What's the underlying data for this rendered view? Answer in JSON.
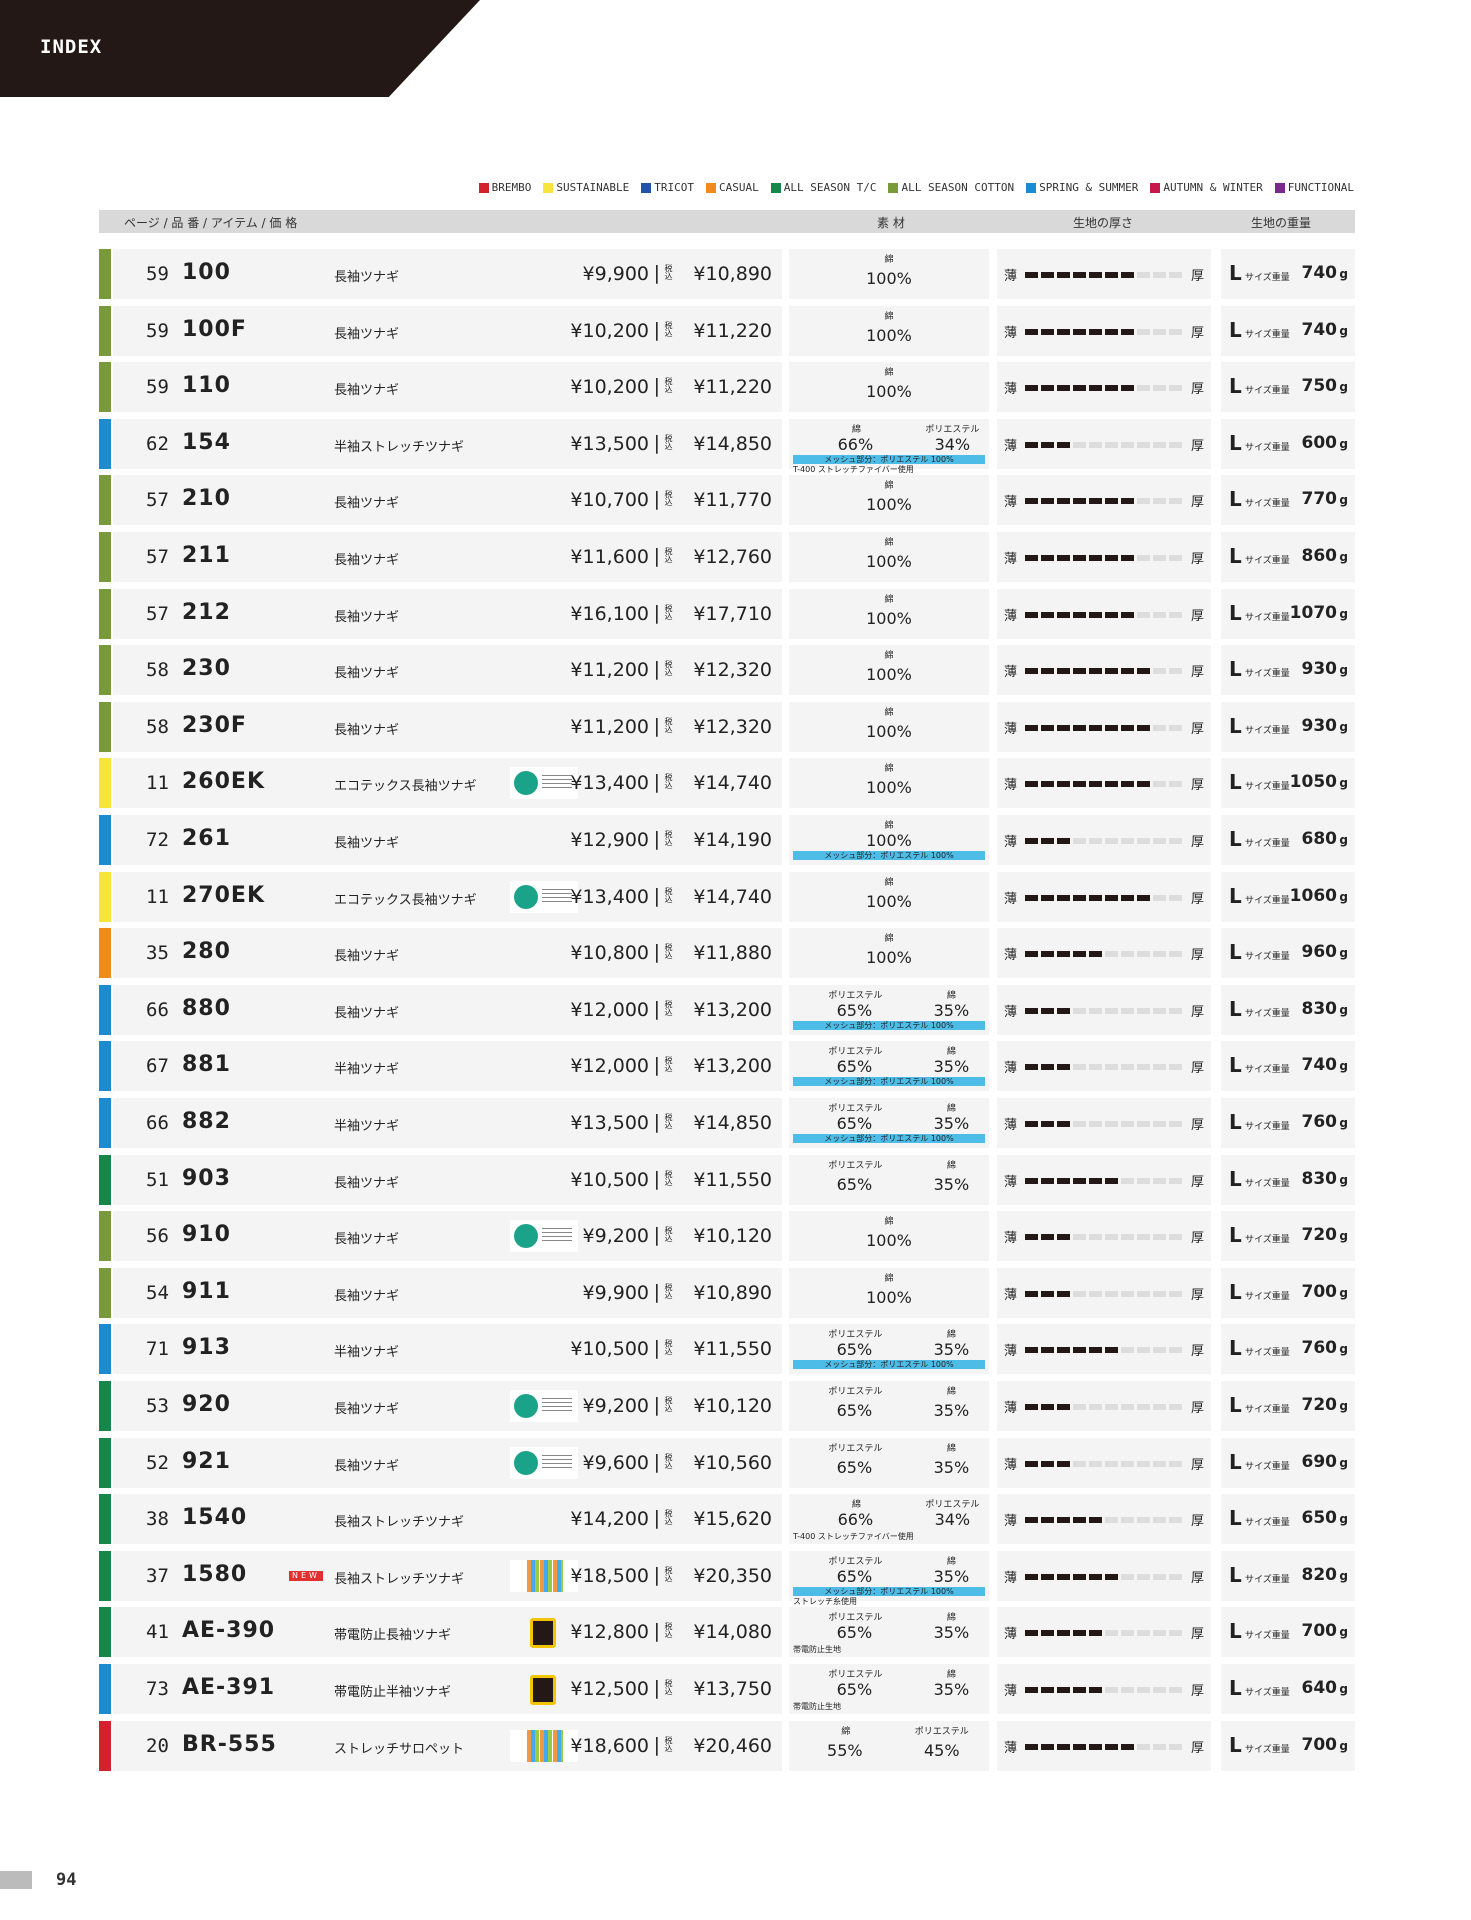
{
  "header": {
    "title": "INDEX"
  },
  "legend": [
    {
      "name": "BREMBO",
      "color": "#d2222d"
    },
    {
      "name": "SUSTAINABLE",
      "color": "#f7e53b"
    },
    {
      "name": "TRICOT",
      "color": "#2353a6"
    },
    {
      "name": "CASUAL",
      "color": "#f08a1d"
    },
    {
      "name": "ALL SEASON T/C",
      "color": "#16874a"
    },
    {
      "name": "ALL SEASON COTTON",
      "color": "#7a9a3a"
    },
    {
      "name": "SPRING & SUMMER",
      "color": "#1b8bd2"
    },
    {
      "name": "AUTUMN & WINTER",
      "color": "#c8174a"
    },
    {
      "name": "FUNCTIONAL",
      "color": "#7a2a8a"
    }
  ],
  "columns": [
    "ページ / 品 番 / アイテム / 価 格",
    "素 材",
    "生地の厚さ",
    "生地の重量"
  ],
  "labels": {
    "tax": "税込",
    "thin": "薄",
    "thick": "厚",
    "size": "L",
    "size_note": "サイズ重量",
    "unit": "g",
    "new": "NEW"
  },
  "material_colors": {
    "綿": "#f08a1d",
    "ポリエステル": "#4dbde8"
  },
  "rows": [
    {
      "category": 5,
      "page": "59",
      "code": "100",
      "item": "長袖ツナギ",
      "price": "¥9,900",
      "price_tax": "¥10,890",
      "materials": [
        {
          "name": "綿",
          "value": 100,
          "label": "100%"
        }
      ],
      "thickness": 7,
      "weight": 740
    },
    {
      "category": 5,
      "page": "59",
      "code": "100F",
      "item": "長袖ツナギ",
      "price": "¥10,200",
      "price_tax": "¥11,220",
      "materials": [
        {
          "name": "綿",
          "value": 100,
          "label": "100%"
        }
      ],
      "thickness": 7,
      "weight": 740
    },
    {
      "category": 5,
      "page": "59",
      "code": "110",
      "item": "長袖ツナギ",
      "price": "¥10,200",
      "price_tax": "¥11,220",
      "materials": [
        {
          "name": "綿",
          "value": 100,
          "label": "100%"
        }
      ],
      "thickness": 7,
      "weight": 750
    },
    {
      "category": 6,
      "page": "62",
      "code": "154",
      "item": "半袖ストレッチツナギ",
      "price": "¥13,500",
      "price_tax": "¥14,850",
      "materials": [
        {
          "name": "綿",
          "value": 66,
          "label": "66%"
        },
        {
          "name": "ポリエステル",
          "value": 34,
          "label": "34%"
        }
      ],
      "notes": [
        "メッシュ部分：ポリエステル 100%",
        "T-400 ストレッチファイバー使用"
      ],
      "thickness": 3,
      "weight": 600
    },
    {
      "category": 5,
      "page": "57",
      "code": "210",
      "item": "長袖ツナギ",
      "price": "¥10,700",
      "price_tax": "¥11,770",
      "materials": [
        {
          "name": "綿",
          "value": 100,
          "label": "100%"
        }
      ],
      "thickness": 7,
      "weight": 770
    },
    {
      "category": 5,
      "page": "57",
      "code": "211",
      "item": "長袖ツナギ",
      "price": "¥11,600",
      "price_tax": "¥12,760",
      "materials": [
        {
          "name": "綿",
          "value": 100,
          "label": "100%"
        }
      ],
      "thickness": 7,
      "weight": 860
    },
    {
      "category": 5,
      "page": "57",
      "code": "212",
      "item": "長袖ツナギ",
      "price": "¥16,100",
      "price_tax": "¥17,710",
      "materials": [
        {
          "name": "綿",
          "value": 100,
          "label": "100%"
        }
      ],
      "thickness": 7,
      "weight": 1070
    },
    {
      "category": 5,
      "page": "58",
      "code": "230",
      "item": "長袖ツナギ",
      "price": "¥11,200",
      "price_tax": "¥12,320",
      "materials": [
        {
          "name": "綿",
          "value": 100,
          "label": "100%"
        }
      ],
      "thickness": 8,
      "weight": 930
    },
    {
      "category": 5,
      "page": "58",
      "code": "230F",
      "item": "長袖ツナギ",
      "price": "¥11,200",
      "price_tax": "¥12,320",
      "materials": [
        {
          "name": "綿",
          "value": 100,
          "label": "100%"
        }
      ],
      "thickness": 8,
      "weight": 930
    },
    {
      "category": 1,
      "page": "11",
      "code": "260EK",
      "item": "エコテックス長袖ツナギ",
      "badge": "oeko",
      "price": "¥13,400",
      "price_tax": "¥14,740",
      "materials": [
        {
          "name": "綿",
          "value": 100,
          "label": "100%"
        }
      ],
      "thickness": 8,
      "weight": 1050
    },
    {
      "category": 6,
      "page": "72",
      "code": "261",
      "item": "長袖ツナギ",
      "price": "¥12,900",
      "price_tax": "¥14,190",
      "materials": [
        {
          "name": "綿",
          "value": 100,
          "label": "100%"
        }
      ],
      "notes": [
        "メッシュ部分：ポリエステル 100%"
      ],
      "thickness": 3,
      "weight": 680
    },
    {
      "category": 1,
      "page": "11",
      "code": "270EK",
      "item": "エコテックス長袖ツナギ",
      "badge": "oeko",
      "price": "¥13,400",
      "price_tax": "¥14,740",
      "materials": [
        {
          "name": "綿",
          "value": 100,
          "label": "100%"
        }
      ],
      "thickness": 8,
      "weight": 1060
    },
    {
      "category": 3,
      "page": "35",
      "code": "280",
      "item": "長袖ツナギ",
      "price": "¥10,800",
      "price_tax": "¥11,880",
      "materials": [
        {
          "name": "綿",
          "value": 100,
          "label": "100%"
        }
      ],
      "thickness": 5,
      "weight": 960
    },
    {
      "category": 6,
      "page": "66",
      "code": "880",
      "item": "長袖ツナギ",
      "price": "¥12,000",
      "price_tax": "¥13,200",
      "materials": [
        {
          "name": "ポリエステル",
          "value": 65,
          "label": "65%"
        },
        {
          "name": "綿",
          "value": 35,
          "label": "35%"
        }
      ],
      "notes": [
        "メッシュ部分：ポリエステル 100%"
      ],
      "thickness": 3,
      "weight": 830
    },
    {
      "category": 6,
      "page": "67",
      "code": "881",
      "item": "半袖ツナギ",
      "price": "¥12,000",
      "price_tax": "¥13,200",
      "materials": [
        {
          "name": "ポリエステル",
          "value": 65,
          "label": "65%"
        },
        {
          "name": "綿",
          "value": 35,
          "label": "35%"
        }
      ],
      "notes": [
        "メッシュ部分：ポリエステル 100%"
      ],
      "thickness": 3,
      "weight": 740
    },
    {
      "category": 6,
      "page": "66",
      "code": "882",
      "item": "半袖ツナギ",
      "price": "¥13,500",
      "price_tax": "¥14,850",
      "materials": [
        {
          "name": "ポリエステル",
          "value": 65,
          "label": "65%"
        },
        {
          "name": "綿",
          "value": 35,
          "label": "35%"
        }
      ],
      "notes": [
        "メッシュ部分：ポリエステル 100%"
      ],
      "thickness": 3,
      "weight": 760
    },
    {
      "category": 4,
      "page": "51",
      "code": "903",
      "item": "長袖ツナギ",
      "price": "¥10,500",
      "price_tax": "¥11,550",
      "materials": [
        {
          "name": "ポリエステル",
          "value": 65,
          "label": "65%"
        },
        {
          "name": "綿",
          "value": 35,
          "label": "35%"
        }
      ],
      "thickness": 6,
      "weight": 830
    },
    {
      "category": 5,
      "page": "56",
      "code": "910",
      "item": "長袖ツナギ",
      "badge": "oeko",
      "price": "¥9,200",
      "price_tax": "¥10,120",
      "materials": [
        {
          "name": "綿",
          "value": 100,
          "label": "100%"
        }
      ],
      "thickness": 3,
      "weight": 720
    },
    {
      "category": 5,
      "page": "54",
      "code": "911",
      "item": "長袖ツナギ",
      "price": "¥9,900",
      "price_tax": "¥10,890",
      "materials": [
        {
          "name": "綿",
          "value": 100,
          "label": "100%"
        }
      ],
      "thickness": 3,
      "weight": 700
    },
    {
      "category": 6,
      "page": "71",
      "code": "913",
      "item": "半袖ツナギ",
      "price": "¥10,500",
      "price_tax": "¥11,550",
      "materials": [
        {
          "name": "ポリエステル",
          "value": 65,
          "label": "65%"
        },
        {
          "name": "綿",
          "value": 35,
          "label": "35%"
        }
      ],
      "notes": [
        "メッシュ部分：ポリエステル 100%"
      ],
      "thickness": 6,
      "weight": 760
    },
    {
      "category": 4,
      "page": "53",
      "code": "920",
      "item": "長袖ツナギ",
      "badge": "oeko",
      "price": "¥9,200",
      "price_tax": "¥10,120",
      "materials": [
        {
          "name": "ポリエステル",
          "value": 65,
          "label": "65%"
        },
        {
          "name": "綿",
          "value": 35,
          "label": "35%"
        }
      ],
      "thickness": 3,
      "weight": 720
    },
    {
      "category": 4,
      "page": "52",
      "code": "921",
      "item": "長袖ツナギ",
      "badge": "oeko",
      "price": "¥9,600",
      "price_tax": "¥10,560",
      "materials": [
        {
          "name": "ポリエステル",
          "value": 65,
          "label": "65%"
        },
        {
          "name": "綿",
          "value": 35,
          "label": "35%"
        }
      ],
      "thickness": 3,
      "weight": 690
    },
    {
      "category": 4,
      "page": "38",
      "code": "1540",
      "item": "長袖ストレッチツナギ",
      "price": "¥14,200",
      "price_tax": "¥15,620",
      "materials": [
        {
          "name": "綿",
          "value": 66,
          "label": "66%"
        },
        {
          "name": "ポリエステル",
          "value": 34,
          "label": "34%"
        }
      ],
      "notes": [
        "T-400 ストレッチファイバー使用"
      ],
      "thickness": 5,
      "weight": 650
    },
    {
      "category": 4,
      "page": "37",
      "code": "1580",
      "item": "長袖ストレッチツナギ",
      "new": true,
      "badge": "sustainable",
      "price": "¥18,500",
      "price_tax": "¥20,350",
      "materials": [
        {
          "name": "ポリエステル",
          "value": 65,
          "label": "65%"
        },
        {
          "name": "綿",
          "value": 35,
          "label": "35%"
        }
      ],
      "notes": [
        "メッシュ部分：ポリエステル 100%",
        "ストレッチ糸使用"
      ],
      "thickness": 6,
      "weight": 820
    },
    {
      "category": 4,
      "page": "41",
      "code": "AE-390",
      "item": "帯電防止長袖ツナギ",
      "badge": "antistatic",
      "price": "¥12,800",
      "price_tax": "¥14,080",
      "materials": [
        {
          "name": "ポリエステル",
          "value": 65,
          "label": "65%"
        },
        {
          "name": "綿",
          "value": 35,
          "label": "35%"
        }
      ],
      "notes": [
        "帯電防止生地"
      ],
      "thickness": 5,
      "weight": 700
    },
    {
      "category": 6,
      "page": "73",
      "code": "AE-391",
      "item": "帯電防止半袖ツナギ",
      "badge": "antistatic",
      "price": "¥12,500",
      "price_tax": "¥13,750",
      "materials": [
        {
          "name": "ポリエステル",
          "value": 65,
          "label": "65%"
        },
        {
          "name": "綿",
          "value": 35,
          "label": "35%"
        }
      ],
      "notes": [
        "帯電防止生地"
      ],
      "thickness": 5,
      "weight": 640
    },
    {
      "category": 0,
      "page": "20",
      "code": "BR-555",
      "item": "ストレッチサロペット",
      "badge": "sustainable",
      "price": "¥18,600",
      "price_tax": "¥20,460",
      "materials": [
        {
          "name": "綿",
          "value": 55,
          "label": "55%"
        },
        {
          "name": "ポリエステル",
          "value": 45,
          "label": "45%"
        }
      ],
      "thickness": 7,
      "weight": 700
    }
  ],
  "footer": {
    "page_number": "94"
  }
}
